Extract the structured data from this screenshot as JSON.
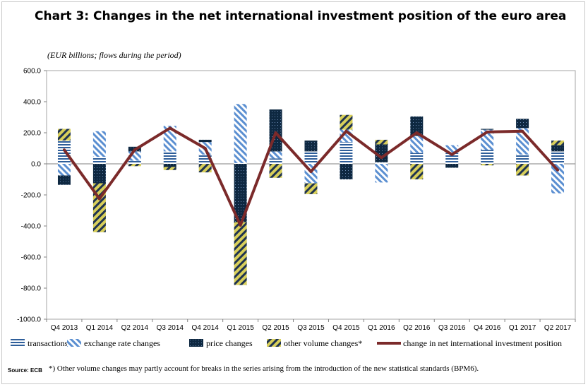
{
  "title": "Chart 3: Changes in the net international investment position of the euro area",
  "footer": {
    "source": "Source: ECB",
    "footnote": "*) Other volume changes  may partly account for breaks in the series  arising from the introduction of  the new statistical standards (BPM6)."
  },
  "colors": {
    "transactions": "#2e5e9a",
    "exchange": "#5b8fd1",
    "price": "#0e2841",
    "other": "#d8cf5a",
    "line": "#7b2a2a"
  },
  "chart_data": {
    "type": "bar",
    "title": "Chart 3: Changes in the net international investment position of the euro area",
    "subtitle": "(EUR billions; flows during the period)",
    "stacked": true,
    "categories": [
      "Q4 2013",
      "Q1 2014",
      "Q2 2014",
      "Q3 2014",
      "Q4 2014",
      "Q1 2015",
      "Q2 2015",
      "Q3 2015",
      "Q4 2015",
      "Q1 2016",
      "Q2 2016",
      "Q3 2016",
      "Q4 2016",
      "Q1 2017",
      "Q2 2017"
    ],
    "ylim": [
      -1000,
      600
    ],
    "yticks": [
      600,
      400,
      200,
      0,
      -200,
      -400,
      -600,
      -800,
      -1000
    ],
    "ytick_labels": [
      "600.0",
      "400.0",
      "200.0",
      "0.0",
      "-200.0",
      "-400.0",
      "-600.0",
      "-800.0",
      "-1000.0"
    ],
    "series": [
      {
        "name": "transactions",
        "kind": "bar",
        "values": [
          150,
          45,
          20,
          80,
          60,
          5,
          35,
          80,
          140,
          10,
          70,
          70,
          90,
          60,
          80
        ]
      },
      {
        "name": "exchange rate changes",
        "kind": "bar",
        "values": [
          -75,
          165,
          60,
          165,
          80,
          380,
          45,
          -125,
          80,
          -120,
          110,
          50,
          130,
          170,
          -190
        ]
      },
      {
        "name": "price changes",
        "kind": "bar",
        "values": [
          -60,
          -125,
          30,
          -20,
          15,
          -375,
          270,
          70,
          -100,
          115,
          125,
          -25,
          5,
          60,
          40
        ]
      },
      {
        "name": "other volume changes*",
        "kind": "bar",
        "values": [
          75,
          -315,
          -15,
          -20,
          -55,
          -405,
          -90,
          -70,
          95,
          30,
          -100,
          0,
          -10,
          -75,
          30
        ]
      },
      {
        "name": "change in net international investment position",
        "kind": "line",
        "values": [
          90,
          -225,
          90,
          230,
          100,
          -395,
          200,
          -50,
          210,
          40,
          200,
          60,
          205,
          210,
          -40
        ]
      }
    ],
    "legend_position": "bottom"
  }
}
